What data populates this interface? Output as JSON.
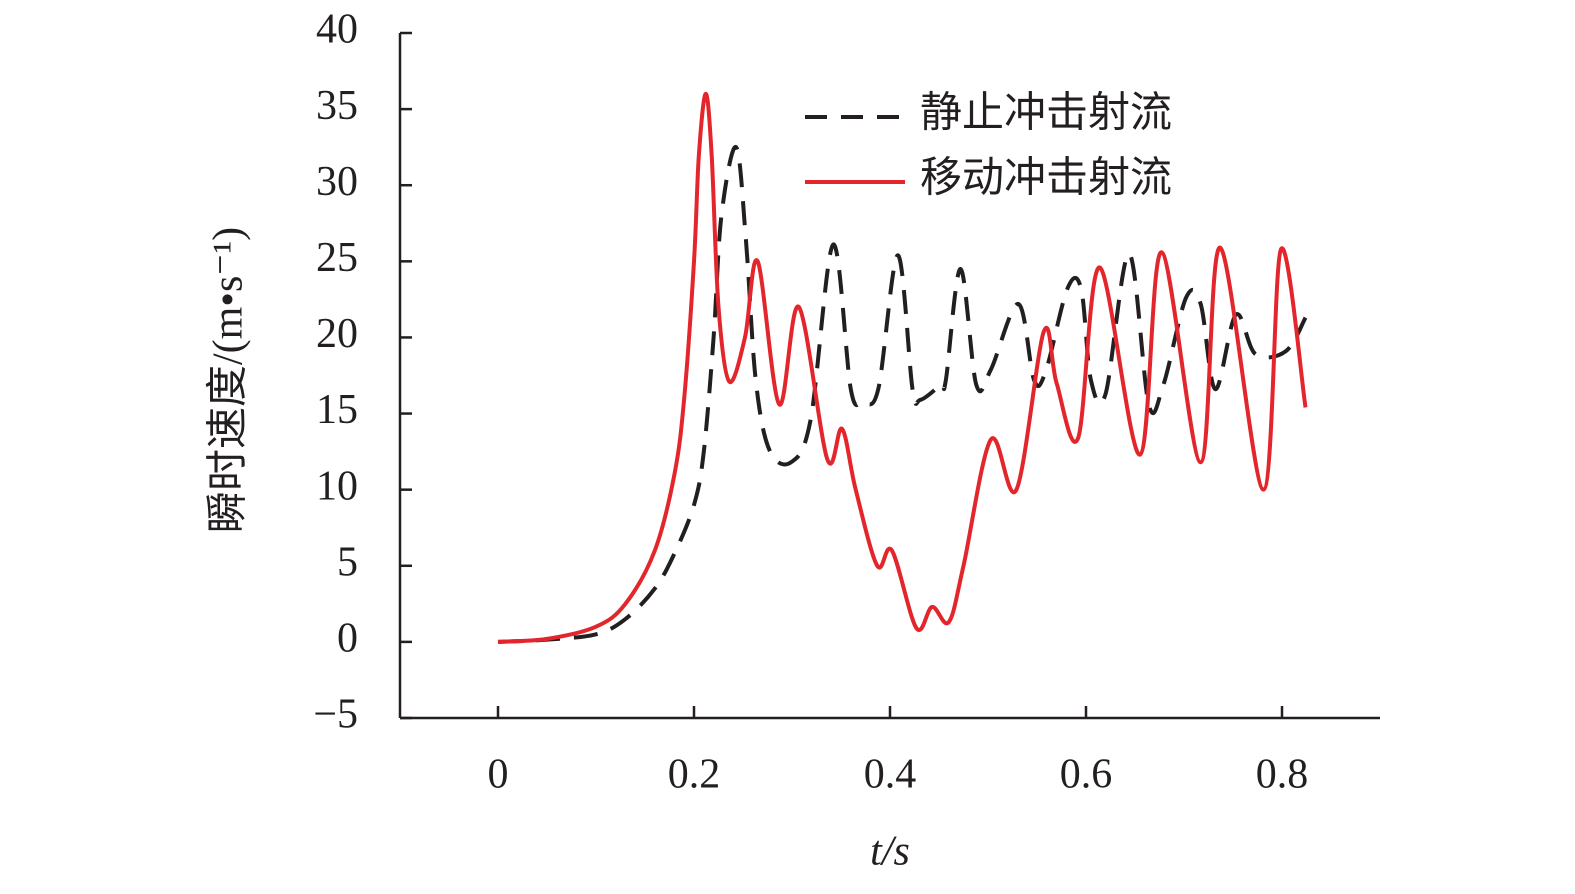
{
  "chart_data": {
    "type": "line",
    "xlabel": "t/s",
    "ylabel": "瞬时速度/(m•s⁻¹)",
    "xlim": [
      -0.1,
      0.9
    ],
    "xticks": [
      0,
      0.2,
      0.4,
      0.6,
      0.8
    ],
    "ylim": [
      -5,
      40
    ],
    "yticks": [
      {
        "value": -5,
        "label": "−5"
      },
      0,
      5,
      10,
      15,
      20,
      25,
      30,
      35,
      40
    ],
    "series": [
      {
        "name": "静止冲击射流",
        "color": "#231f20",
        "dashed": true,
        "x": [
          0,
          0.05,
          0.1,
          0.13,
          0.16,
          0.18,
          0.2,
          0.21,
          0.22,
          0.228,
          0.243,
          0.253,
          0.263,
          0.277,
          0.299,
          0.319,
          0.342,
          0.36,
          0.372,
          0.388,
          0.408,
          0.423,
          0.431,
          0.452,
          0.457,
          0.472,
          0.488,
          0.503,
          0.531,
          0.547,
          0.559,
          0.581,
          0.595,
          0.605,
          0.62,
          0.644,
          0.664,
          0.679,
          0.702,
          0.717,
          0.732,
          0.753,
          0.773,
          0.804,
          0.824
        ],
        "values": [
          0,
          0.15,
          0.5,
          1.5,
          3.5,
          5.8,
          9,
          12.5,
          20,
          28,
          32.5,
          26.4,
          17.2,
          12.6,
          11.8,
          14.6,
          26.1,
          16.6,
          15.8,
          16.6,
          25.4,
          16.6,
          15.9,
          16.9,
          17.2,
          24.5,
          16.9,
          17.9,
          22.2,
          17.2,
          17.8,
          23.2,
          23.2,
          17.2,
          16.3,
          25.5,
          15.6,
          16.9,
          22.6,
          22.2,
          16.6,
          21.5,
          18.9,
          19.1,
          21.3
        ]
      },
      {
        "name": "移动冲击射流",
        "color": "#e3262b",
        "dashed": false,
        "x": [
          0,
          0.05,
          0.1,
          0.13,
          0.16,
          0.18,
          0.19,
          0.2,
          0.205,
          0.212,
          0.218,
          0.225,
          0.236,
          0.252,
          0.265,
          0.287,
          0.307,
          0.336,
          0.351,
          0.365,
          0.387,
          0.402,
          0.427,
          0.443,
          0.46,
          0.475,
          0.503,
          0.529,
          0.557,
          0.57,
          0.592,
          0.614,
          0.655,
          0.677,
          0.717,
          0.737,
          0.781,
          0.799,
          0.824
        ],
        "values": [
          0,
          0.2,
          1,
          2.5,
          6,
          11,
          16,
          25,
          32,
          36,
          32,
          22,
          17.1,
          20,
          25,
          15.6,
          22,
          12,
          14,
          10,
          5,
          6,
          0.9,
          2.3,
          1.3,
          5,
          13.3,
          10,
          20.4,
          17,
          13.4,
          24.6,
          12.3,
          25.6,
          11.8,
          25.9,
          10,
          25.8,
          15.4
        ]
      }
    ]
  }
}
